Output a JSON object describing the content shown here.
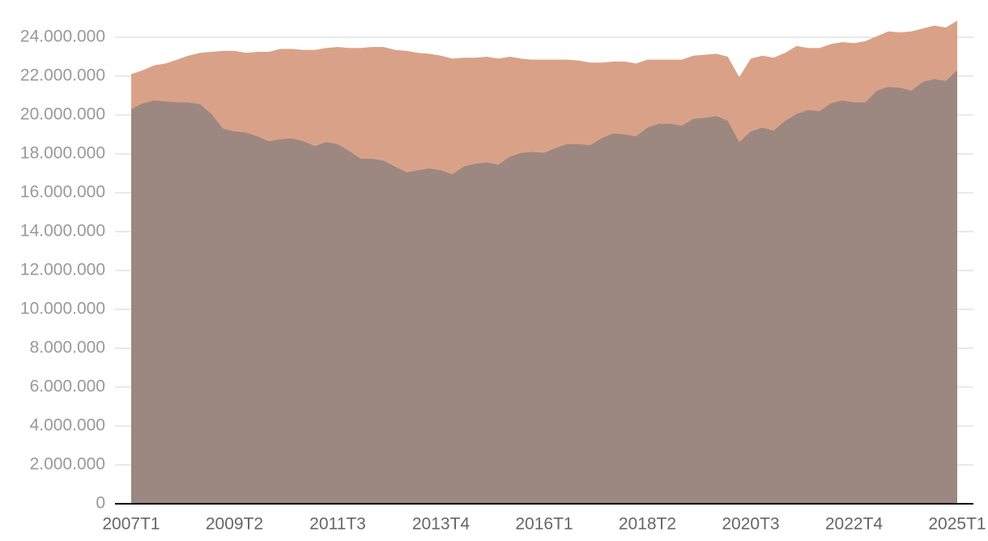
{
  "chart_data": {
    "type": "area",
    "categories": [
      "2007T1",
      null,
      null,
      null,
      null,
      null,
      null,
      null,
      null,
      "2009T2",
      null,
      null,
      null,
      null,
      null,
      null,
      null,
      null,
      "2011T3",
      null,
      null,
      null,
      null,
      null,
      null,
      null,
      null,
      "2013T4",
      null,
      null,
      null,
      null,
      null,
      null,
      null,
      null,
      "2016T1",
      null,
      null,
      null,
      null,
      null,
      null,
      null,
      null,
      "2018T2",
      null,
      null,
      null,
      null,
      null,
      null,
      null,
      null,
      "2020T3",
      null,
      null,
      null,
      null,
      null,
      null,
      null,
      null,
      "2022T4",
      null,
      null,
      null,
      null,
      null,
      null,
      null,
      null,
      "2025T1"
    ],
    "series": [
      {
        "color": "#d9a288",
        "values": [
          22100000,
          22300000,
          22550000,
          22650000,
          22850000,
          23050000,
          23200000,
          23250000,
          23300000,
          23300000,
          23200000,
          23250000,
          23250000,
          23400000,
          23400000,
          23350000,
          23350000,
          23450000,
          23500000,
          23450000,
          23450000,
          23500000,
          23500000,
          23350000,
          23300000,
          23200000,
          23150000,
          23050000,
          22900000,
          22950000,
          22950000,
          23000000,
          22900000,
          23000000,
          22900000,
          22850000,
          22850000,
          22850000,
          22850000,
          22800000,
          22700000,
          22700000,
          22750000,
          22750000,
          22650000,
          22850000,
          22850000,
          22850000,
          22850000,
          23050000,
          23100000,
          23150000,
          23000000,
          21950000,
          22900000,
          23050000,
          22950000,
          23200000,
          23550000,
          23450000,
          23450000,
          23650000,
          23750000,
          23700000,
          23800000,
          24050000,
          24300000,
          24250000,
          24300000,
          24450000,
          24600000,
          24500000,
          24850000
        ]
      },
      {
        "color": "#9c8880",
        "values": [
          20300000,
          20600000,
          20750000,
          20700000,
          20650000,
          20650000,
          20550000,
          20050000,
          19300000,
          19150000,
          19100000,
          18900000,
          18650000,
          18750000,
          18800000,
          18650000,
          18400000,
          18600000,
          18500000,
          18150000,
          17750000,
          17750000,
          17650000,
          17350000,
          17050000,
          17150000,
          17250000,
          17150000,
          16950000,
          17350000,
          17500000,
          17550000,
          17450000,
          17850000,
          18050000,
          18100000,
          18050000,
          18300000,
          18500000,
          18500000,
          18450000,
          18800000,
          19050000,
          19000000,
          18900000,
          19350000,
          19550000,
          19550000,
          19450000,
          19800000,
          19850000,
          19950000,
          19700000,
          18600000,
          19150000,
          19350000,
          19200000,
          19700000,
          20050000,
          20250000,
          20200000,
          20600000,
          20750000,
          20650000,
          20650000,
          21250000,
          21450000,
          21400000,
          21250000,
          21700000,
          21850000,
          21750000,
          22300000
        ]
      }
    ],
    "ylim": [
      0,
      25000000
    ],
    "yticks": [
      0,
      {
        "value": 2000000,
        "label": "2.000.000"
      },
      {
        "value": 4000000,
        "label": "4.000.000"
      },
      {
        "value": 6000000,
        "label": "6.000.000"
      },
      {
        "value": 8000000,
        "label": "8.000.000"
      },
      {
        "value": 10000000,
        "label": "10.000.000"
      },
      {
        "value": 12000000,
        "label": "12.000.000"
      },
      {
        "value": 14000000,
        "label": "14.000.000"
      },
      {
        "value": 16000000,
        "label": "16.000.000"
      },
      {
        "value": 18000000,
        "label": "18.000.000"
      },
      {
        "value": 20000000,
        "label": "20.000.000"
      },
      {
        "value": 22000000,
        "label": "22.000.000"
      },
      {
        "value": 24000000,
        "label": "24.000.000"
      }
    ],
    "grid": true
  }
}
